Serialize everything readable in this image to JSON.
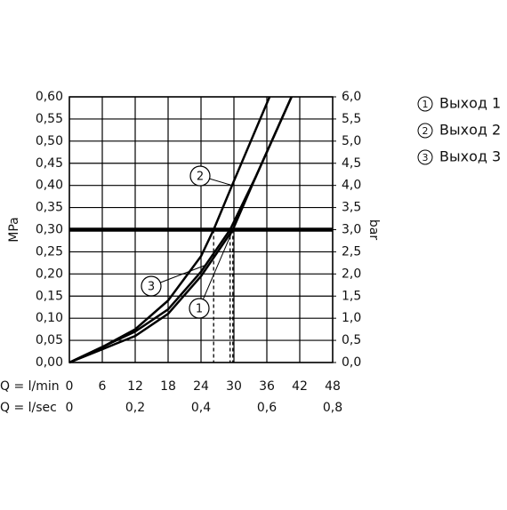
{
  "chart_data": {
    "type": "line",
    "y_label": "MPa",
    "y2_label": "bar",
    "x_label": "Q = l/min",
    "x2_label": "Q = l/sec",
    "xlim": [
      0,
      48
    ],
    "xticks": [
      0,
      6,
      12,
      18,
      24,
      30,
      36,
      42,
      48
    ],
    "x2lim": [
      0,
      0.8
    ],
    "x2ticks": [
      0,
      {
        "value": 0.2,
        "label": "0,2"
      },
      {
        "value": 0.4,
        "label": "0,4"
      },
      {
        "value": 0.6,
        "label": "0,6"
      },
      {
        "value": 0.8,
        "label": "0,8"
      }
    ],
    "ylim": [
      0,
      0.6
    ],
    "yticks": [
      {
        "value": 0,
        "label": "0,00"
      },
      {
        "value": 0.05,
        "label": "0,05"
      },
      {
        "value": 0.1,
        "label": "0,10"
      },
      {
        "value": 0.15,
        "label": "0,15"
      },
      {
        "value": 0.2,
        "label": "0,20"
      },
      {
        "value": 0.25,
        "label": "0,25"
      },
      {
        "value": 0.3,
        "label": "0,30"
      },
      {
        "value": 0.35,
        "label": "0,35"
      },
      {
        "value": 0.4,
        "label": "0,40"
      },
      {
        "value": 0.45,
        "label": "0,45"
      },
      {
        "value": 0.5,
        "label": "0,50"
      },
      {
        "value": 0.55,
        "label": "0,55"
      },
      {
        "value": 0.6,
        "label": "0,60"
      }
    ],
    "y2lim": [
      0,
      6
    ],
    "y2ticks": [
      {
        "value": 0,
        "label": "0,0"
      },
      {
        "value": 0.5,
        "label": "0,5"
      },
      {
        "value": 1,
        "label": "1,0"
      },
      {
        "value": 1.5,
        "label": "1,5"
      },
      {
        "value": 2,
        "label": "2,0"
      },
      {
        "value": 2.5,
        "label": "2,5"
      },
      {
        "value": 3,
        "label": "3,0"
      },
      {
        "value": 3.5,
        "label": "3,5"
      },
      {
        "value": 4,
        "label": "4,0"
      },
      {
        "value": 4.5,
        "label": "4,5"
      },
      {
        "value": 5,
        "label": "5,0"
      },
      {
        "value": 5.5,
        "label": "5,5"
      },
      {
        "value": 6,
        "label": "6,0"
      }
    ],
    "grid": true,
    "reference_y": 0.3,
    "drop_lines_x": [
      26.3,
      29.3,
      29.8
    ],
    "series": [
      {
        "name": "Выход 1",
        "label": "1",
        "color": "#000000",
        "x": [
          0,
          6,
          12,
          18,
          24,
          29.8,
          34,
          40.5
        ],
        "values": [
          0,
          0.03,
          0.06,
          0.11,
          0.195,
          0.3,
          0.42,
          0.6
        ]
      },
      {
        "name": "Выход 2",
        "label": "2",
        "color": "#000000",
        "x": [
          0,
          6,
          12,
          18,
          24,
          26.3,
          30,
          36.5
        ],
        "values": [
          0,
          0.035,
          0.075,
          0.14,
          0.24,
          0.3,
          0.41,
          0.6
        ]
      },
      {
        "name": "Выход 3",
        "label": "3",
        "color": "#000000",
        "x": [
          0,
          6,
          12,
          18,
          24,
          29.3,
          34,
          40.5
        ],
        "values": [
          0,
          0.035,
          0.07,
          0.12,
          0.205,
          0.3,
          0.42,
          0.6
        ]
      }
    ]
  }
}
